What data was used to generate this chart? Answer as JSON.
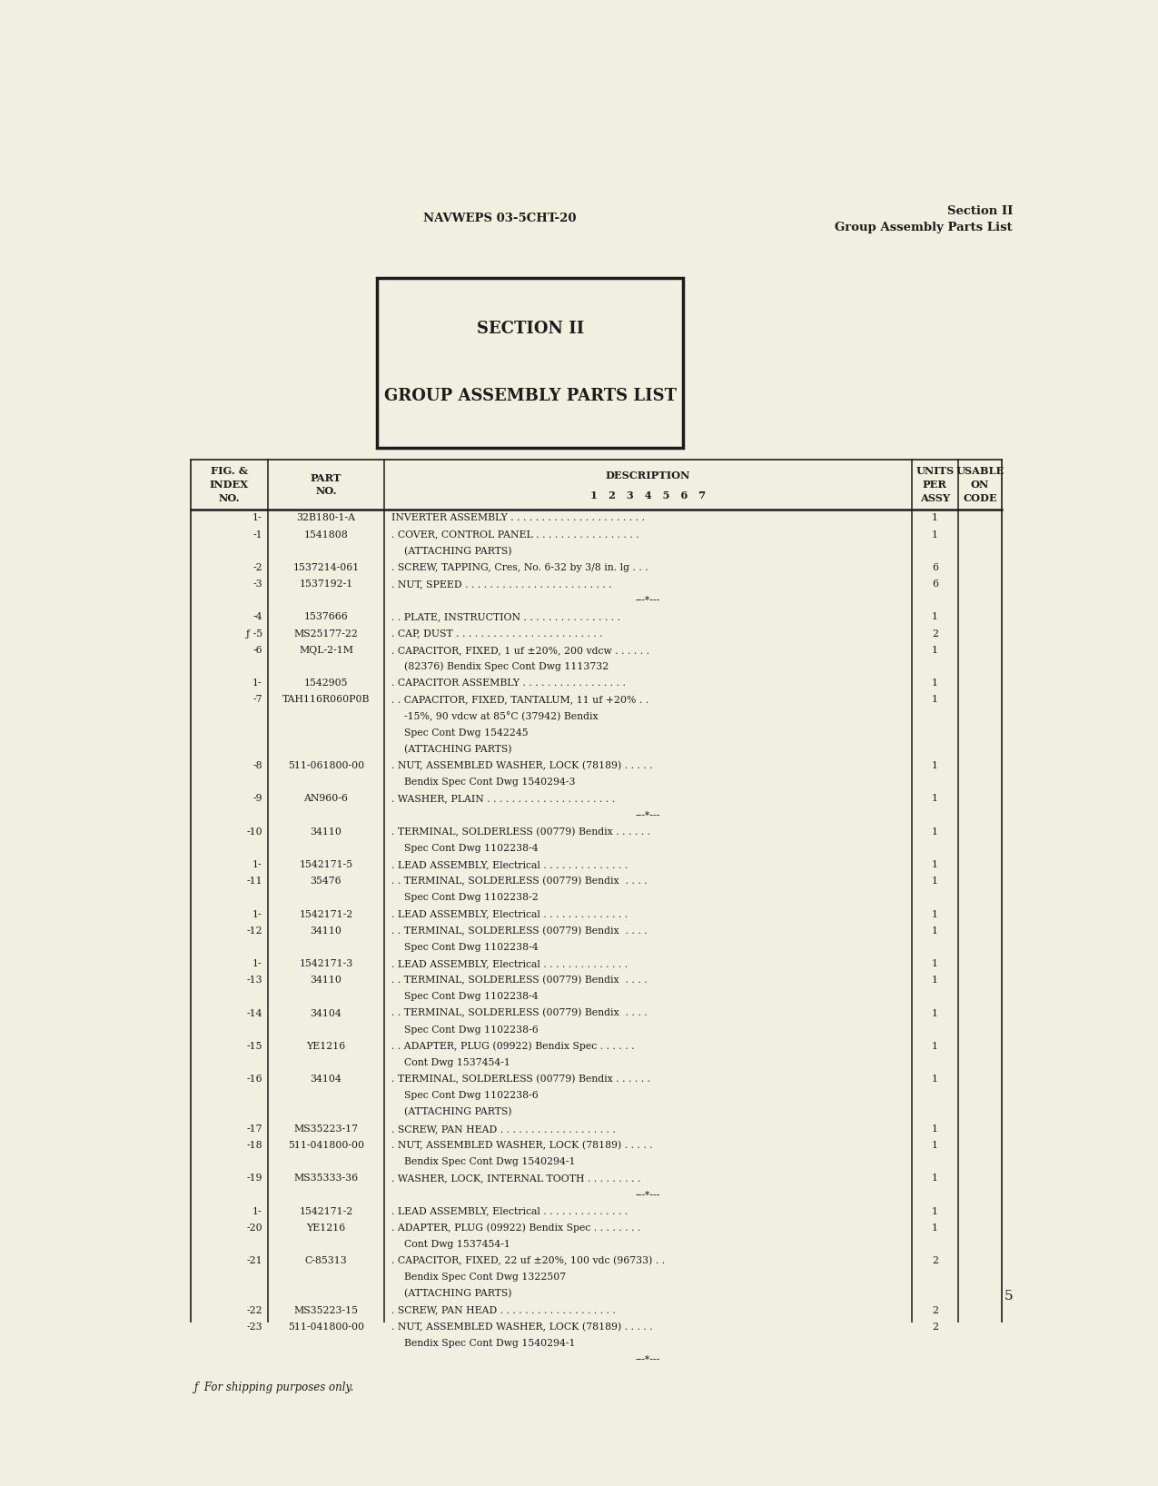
{
  "bg_color": "#f0efe0",
  "page_number": "5",
  "header_left": "NAVWEPS 03-5CHT-20",
  "header_right_line1": "Section II",
  "header_right_line2": "Group Assembly Parts List",
  "section_box_title1": "SECTION II",
  "section_box_title2": "GROUP ASSEMBLY PARTS LIST",
  "rows": [
    {
      "fig": "1-",
      "part": "32B180-1-A",
      "desc": "INVERTER ASSEMBLY . . . . . . . . . . . . . . . . . . . . . .",
      "units": "1",
      "usable": ""
    },
    {
      "fig": "-1",
      "part": "1541808",
      "desc": ". COVER, CONTROL PANEL . . . . . . . . . . . . . . . . .",
      "units": "1",
      "usable": ""
    },
    {
      "fig": "",
      "part": "",
      "desc": "    (ATTACHING PARTS)",
      "units": "",
      "usable": ""
    },
    {
      "fig": "-2",
      "part": "1537214-061",
      "desc": ". SCREW, TAPPING, Cres, No. 6-32 by 3/8 in. lg . . .",
      "units": "6",
      "usable": ""
    },
    {
      "fig": "-3",
      "part": "1537192-1",
      "desc": ". NUT, SPEED . . . . . . . . . . . . . . . . . . . . . . . .",
      "units": "6",
      "usable": ""
    },
    {
      "fig": "",
      "part": "",
      "desc": "---*---",
      "units": "",
      "usable": "",
      "separator": true
    },
    {
      "fig": "-4",
      "part": "1537666",
      "desc": ". . PLATE, INSTRUCTION . . . . . . . . . . . . . . . .",
      "units": "1",
      "usable": ""
    },
    {
      "fig": "ƒ -5",
      "part": "MS25177-22",
      "desc": ". CAP, DUST . . . . . . . . . . . . . . . . . . . . . . . .",
      "units": "2",
      "usable": ""
    },
    {
      "fig": "-6",
      "part": "MQL-2-1M",
      "desc": ". CAPACITOR, FIXED, 1 uf ±20%, 200 vdcw . . . . . .",
      "units": "1",
      "usable": ""
    },
    {
      "fig": "",
      "part": "",
      "desc": "    (82376) Bendix Spec Cont Dwg 1113732",
      "units": "",
      "usable": ""
    },
    {
      "fig": "1-",
      "part": "1542905",
      "desc": ". CAPACITOR ASSEMBLY . . . . . . . . . . . . . . . . .",
      "units": "1",
      "usable": ""
    },
    {
      "fig": "-7",
      "part": "TAH116R060P0B",
      "desc": ". . CAPACITOR, FIXED, TANTALUM, 11 uf +20% . .",
      "units": "1",
      "usable": ""
    },
    {
      "fig": "",
      "part": "",
      "desc": "    -15%, 90 vdcw at 85°C (37942) Bendix",
      "units": "",
      "usable": ""
    },
    {
      "fig": "",
      "part": "",
      "desc": "    Spec Cont Dwg 1542245",
      "units": "",
      "usable": ""
    },
    {
      "fig": "",
      "part": "",
      "desc": "    (ATTACHING PARTS)",
      "units": "",
      "usable": ""
    },
    {
      "fig": "-8",
      "part": "511-061800-00",
      "desc": ". NUT, ASSEMBLED WASHER, LOCK (78189) . . . . .",
      "units": "1",
      "usable": ""
    },
    {
      "fig": "",
      "part": "",
      "desc": "    Bendix Spec Cont Dwg 1540294-3",
      "units": "",
      "usable": ""
    },
    {
      "fig": "-9",
      "part": "AN960-6",
      "desc": ". WASHER, PLAIN . . . . . . . . . . . . . . . . . . . . .",
      "units": "1",
      "usable": ""
    },
    {
      "fig": "",
      "part": "",
      "desc": "---*---",
      "units": "",
      "usable": "",
      "separator": true
    },
    {
      "fig": "-10",
      "part": "34110",
      "desc": ". TERMINAL, SOLDERLESS (00779) Bendix . . . . . .",
      "units": "1",
      "usable": ""
    },
    {
      "fig": "",
      "part": "",
      "desc": "    Spec Cont Dwg 1102238-4",
      "units": "",
      "usable": ""
    },
    {
      "fig": "1-",
      "part": "1542171-5",
      "desc": ". LEAD ASSEMBLY, Electrical . . . . . . . . . . . . . .",
      "units": "1",
      "usable": ""
    },
    {
      "fig": "-11",
      "part": "35476",
      "desc": ". . TERMINAL, SOLDERLESS (00779) Bendix  . . . .",
      "units": "1",
      "usable": ""
    },
    {
      "fig": "",
      "part": "",
      "desc": "    Spec Cont Dwg 1102238-2",
      "units": "",
      "usable": ""
    },
    {
      "fig": "1-",
      "part": "1542171-2",
      "desc": ". LEAD ASSEMBLY, Electrical . . . . . . . . . . . . . .",
      "units": "1",
      "usable": ""
    },
    {
      "fig": "-12",
      "part": "34110",
      "desc": ". . TERMINAL, SOLDERLESS (00779) Bendix  . . . .",
      "units": "1",
      "usable": ""
    },
    {
      "fig": "",
      "part": "",
      "desc": "    Spec Cont Dwg 1102238-4",
      "units": "",
      "usable": ""
    },
    {
      "fig": "1-",
      "part": "1542171-3",
      "desc": ". LEAD ASSEMBLY, Electrical . . . . . . . . . . . . . .",
      "units": "1",
      "usable": ""
    },
    {
      "fig": "-13",
      "part": "34110",
      "desc": ". . TERMINAL, SOLDERLESS (00779) Bendix  . . . .",
      "units": "1",
      "usable": ""
    },
    {
      "fig": "",
      "part": "",
      "desc": "    Spec Cont Dwg 1102238-4",
      "units": "",
      "usable": ""
    },
    {
      "fig": "-14",
      "part": "34104",
      "desc": ". . TERMINAL, SOLDERLESS (00779) Bendix  . . . .",
      "units": "1",
      "usable": ""
    },
    {
      "fig": "",
      "part": "",
      "desc": "    Spec Cont Dwg 1102238-6",
      "units": "",
      "usable": ""
    },
    {
      "fig": "-15",
      "part": "YE1216",
      "desc": ". . ADAPTER, PLUG (09922) Bendix Spec . . . . . .",
      "units": "1",
      "usable": ""
    },
    {
      "fig": "",
      "part": "",
      "desc": "    Cont Dwg 1537454-1",
      "units": "",
      "usable": ""
    },
    {
      "fig": "-16",
      "part": "34104",
      "desc": ". TERMINAL, SOLDERLESS (00779) Bendix . . . . . .",
      "units": "1",
      "usable": ""
    },
    {
      "fig": "",
      "part": "",
      "desc": "    Spec Cont Dwg 1102238-6",
      "units": "",
      "usable": ""
    },
    {
      "fig": "",
      "part": "",
      "desc": "    (ATTACHING PARTS)",
      "units": "",
      "usable": ""
    },
    {
      "fig": "-17",
      "part": "MS35223-17",
      "desc": ". SCREW, PAN HEAD . . . . . . . . . . . . . . . . . . .",
      "units": "1",
      "usable": ""
    },
    {
      "fig": "-18",
      "part": "511-041800-00",
      "desc": ". NUT, ASSEMBLED WASHER, LOCK (78189) . . . . .",
      "units": "1",
      "usable": ""
    },
    {
      "fig": "",
      "part": "",
      "desc": "    Bendix Spec Cont Dwg 1540294-1",
      "units": "",
      "usable": ""
    },
    {
      "fig": "-19",
      "part": "MS35333-36",
      "desc": ". WASHER, LOCK, INTERNAL TOOTH . . . . . . . . .",
      "units": "1",
      "usable": ""
    },
    {
      "fig": "",
      "part": "",
      "desc": "---*---",
      "units": "",
      "usable": "",
      "separator": true
    },
    {
      "fig": "1-",
      "part": "1542171-2",
      "desc": ". LEAD ASSEMBLY, Electrical . . . . . . . . . . . . . .",
      "units": "1",
      "usable": ""
    },
    {
      "fig": "-20",
      "part": "YE1216",
      "desc": ". ADAPTER, PLUG (09922) Bendix Spec . . . . . . . .",
      "units": "1",
      "usable": ""
    },
    {
      "fig": "",
      "part": "",
      "desc": "    Cont Dwg 1537454-1",
      "units": "",
      "usable": ""
    },
    {
      "fig": "-21",
      "part": "C-85313",
      "desc": ". CAPACITOR, FIXED, 22 uf ±20%, 100 vdc (96733) . .",
      "units": "2",
      "usable": ""
    },
    {
      "fig": "",
      "part": "",
      "desc": "    Bendix Spec Cont Dwg 1322507",
      "units": "",
      "usable": ""
    },
    {
      "fig": "",
      "part": "",
      "desc": "    (ATTACHING PARTS)",
      "units": "",
      "usable": ""
    },
    {
      "fig": "-22",
      "part": "MS35223-15",
      "desc": ". SCREW, PAN HEAD . . . . . . . . . . . . . . . . . . .",
      "units": "2",
      "usable": ""
    },
    {
      "fig": "-23",
      "part": "511-041800-00",
      "desc": ". NUT, ASSEMBLED WASHER, LOCK (78189) . . . . .",
      "units": "2",
      "usable": ""
    },
    {
      "fig": "",
      "part": "",
      "desc": "    Bendix Spec Cont Dwg 1540294-1",
      "units": "",
      "usable": ""
    },
    {
      "fig": "",
      "part": "",
      "desc": "---*---",
      "units": "",
      "usable": "",
      "separator": true
    }
  ],
  "footnote": "ƒ  For shipping purposes only."
}
